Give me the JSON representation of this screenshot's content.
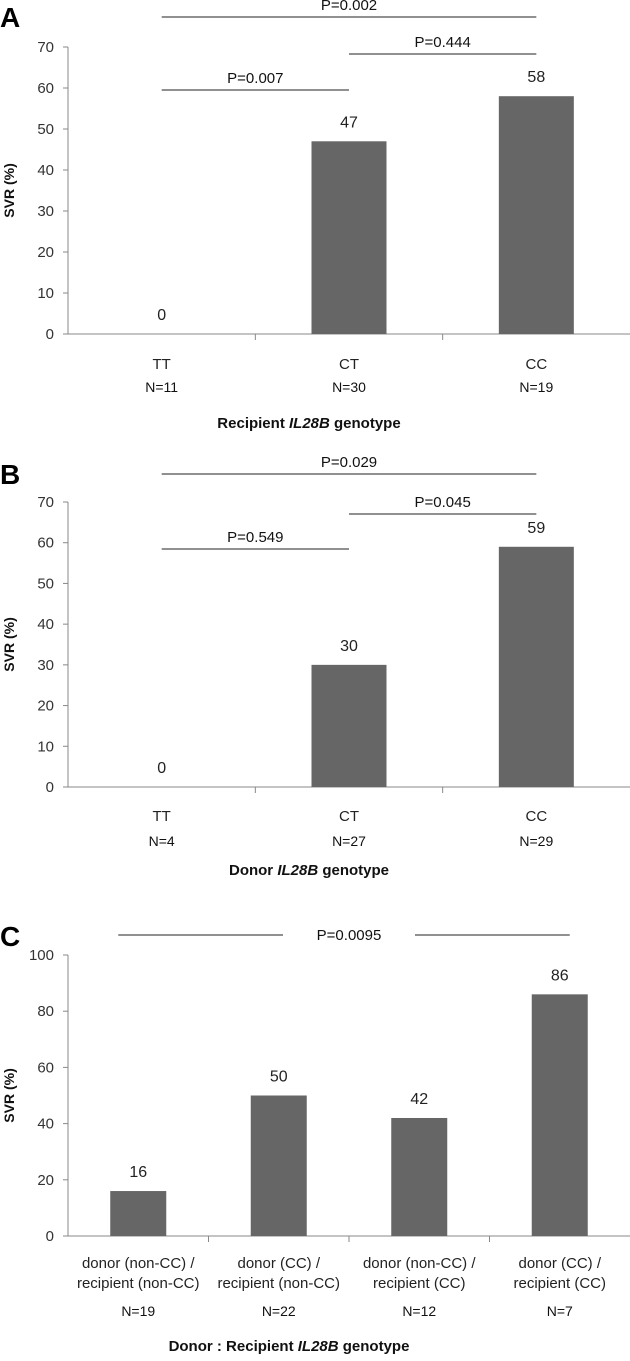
{
  "chart_data": [
    {
      "type": "bar",
      "panel_label": "A",
      "categories": [
        "TT",
        "CT",
        "CC"
      ],
      "n_labels": [
        "N=11",
        "N=30",
        "N=19"
      ],
      "values": [
        0,
        47,
        58
      ],
      "data_labels": [
        "0",
        "47",
        "58"
      ],
      "ylabel": "SVR (%)",
      "xlabel_parts": [
        "Recipient ",
        "IL28B",
        " genotype"
      ],
      "ylim": [
        0,
        70
      ],
      "yticks": [
        "0",
        "10",
        "20",
        "30",
        "40",
        "50",
        "60",
        "70"
      ],
      "comparisons": [
        {
          "from": 0,
          "to": 2,
          "label": "P=0.002"
        },
        {
          "from": 1,
          "to": 2,
          "label": "P=0.444"
        },
        {
          "from": 0,
          "to": 1,
          "label": "P=0.007"
        }
      ],
      "bar_color": "#666666"
    },
    {
      "type": "bar",
      "panel_label": "B",
      "categories": [
        "TT",
        "CT",
        "CC"
      ],
      "n_labels": [
        "N=4",
        "N=27",
        "N=29"
      ],
      "values": [
        0,
        30,
        59
      ],
      "data_labels": [
        "0",
        "30",
        "59"
      ],
      "ylabel": "SVR (%)",
      "xlabel_parts": [
        "Donor ",
        "IL28B",
        " genotype"
      ],
      "ylim": [
        0,
        70
      ],
      "yticks": [
        "0",
        "10",
        "20",
        "30",
        "40",
        "50",
        "60",
        "70"
      ],
      "comparisons": [
        {
          "from": 0,
          "to": 2,
          "label": "P=0.029"
        },
        {
          "from": 1,
          "to": 2,
          "label": "P=0.045"
        },
        {
          "from": 0,
          "to": 1,
          "label": "P=0.549"
        }
      ],
      "bar_color": "#666666"
    },
    {
      "type": "bar",
      "panel_label": "C",
      "categories": [
        [
          "donor (non-CC) /",
          "recipient (non-CC)"
        ],
        [
          "donor (CC) /",
          "recipient (non-CC)"
        ],
        [
          "donor (non-CC) /",
          "recipient (CC)"
        ],
        [
          "donor (CC) /",
          "recipient (CC)"
        ]
      ],
      "n_labels": [
        "N=19",
        "N=22",
        "N=12",
        "N=7"
      ],
      "values": [
        16,
        50,
        42,
        86
      ],
      "data_labels": [
        "16",
        "50",
        "42",
        "86"
      ],
      "ylabel": "SVR (%)",
      "xlabel_parts": [
        "Donor : Recipient ",
        "IL28B",
        " genotype"
      ],
      "ylim": [
        0,
        100
      ],
      "yticks": [
        "0",
        "20",
        "40",
        "60",
        "80",
        "100"
      ],
      "comparisons": [
        {
          "from": 0,
          "to": 3,
          "label": "P=0.0095"
        }
      ],
      "bar_color": "#666666"
    }
  ]
}
